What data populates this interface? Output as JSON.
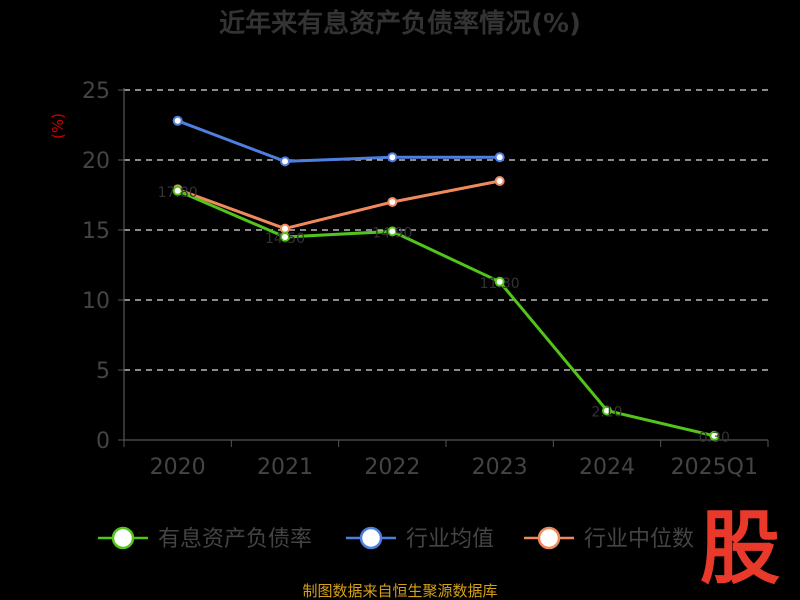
{
  "chart_data": {
    "type": "line",
    "title": "近年来有息资产负债率情况(%)",
    "ylabel": "(%)",
    "categories": [
      "2020",
      "2021",
      "2022",
      "2023",
      "2024",
      "2025Q1"
    ],
    "ylim": [
      0,
      25
    ],
    "yticks": [
      "0",
      "5",
      "10",
      "15",
      "20",
      "25"
    ],
    "grid": true,
    "legend_position": "bottom",
    "series": [
      {
        "name": "有息资产负债率",
        "color": "#52c41a",
        "values": [
          17.8,
          14.5,
          14.9,
          11.3,
          2.1,
          0.3
        ]
      },
      {
        "name": "行业均值",
        "color": "#4e7fe0",
        "values": [
          22.8,
          19.9,
          20.2,
          20.2,
          null,
          null
        ]
      },
      {
        "name": "行业中位数",
        "color": "#f08a5d",
        "values": [
          17.9,
          15.1,
          17.0,
          18.5,
          null,
          null
        ]
      }
    ]
  },
  "source_text": "制图数据来自恒生聚源数据库",
  "logo_text": "股"
}
